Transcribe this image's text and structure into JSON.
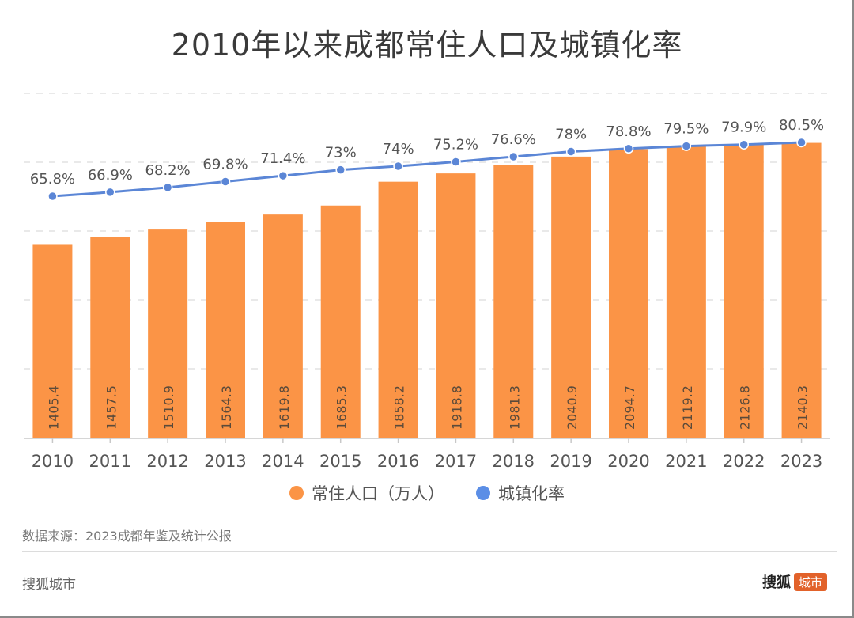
{
  "header": {
    "title": "2010年以来成都常住人口及城镇化率"
  },
  "colors": {
    "bar": "#fb9446",
    "line": "#5b86d6",
    "text": "#555555",
    "grid": "#e2e2e2",
    "logo_tag": "#e2622a"
  },
  "legend": [
    {
      "label": "常住人口（万人）",
      "color": "#fb9446"
    },
    {
      "label": "城镇化率",
      "color": "#5b8ee6"
    }
  ],
  "footer": {
    "source": "数据来源：2023成都年鉴及统计公报",
    "left_brand": "搜狐城市",
    "logo_main": "搜狐",
    "logo_tag": "城市"
  },
  "chart_data": {
    "type": "bar",
    "title": "2010年以来成都常住人口及城镇化率",
    "categories": [
      "2010",
      "2011",
      "2012",
      "2013",
      "2014",
      "2015",
      "2016",
      "2017",
      "2018",
      "2019",
      "2020",
      "2021",
      "2022",
      "2023"
    ],
    "series": [
      {
        "name": "常住人口（万人）",
        "type": "bar",
        "axis": "left",
        "values": [
          1405.4,
          1457.5,
          1510.9,
          1564.3,
          1619.8,
          1685.3,
          1858.2,
          1918.8,
          1981.3,
          2040.9,
          2094.7,
          2119.2,
          2126.8,
          2140.3
        ],
        "labels": [
          "1405.4",
          "1457.5",
          "1510.9",
          "1564.3",
          "1619.8",
          "1685.3",
          "1858.2",
          "1918.8",
          "1981.3",
          "2040.9",
          "2094.7",
          "2119.2",
          "2126.8",
          "2140.3"
        ]
      },
      {
        "name": "城镇化率",
        "type": "line",
        "axis": "right",
        "values": [
          65.8,
          66.9,
          68.2,
          69.8,
          71.4,
          73,
          74,
          75.2,
          76.6,
          78,
          78.8,
          79.5,
          79.9,
          80.5
        ],
        "labels": [
          "65.8%",
          "66.9%",
          "68.2%",
          "69.8%",
          "71.4%",
          "73%",
          "74%",
          "75.2%",
          "76.6%",
          "78%",
          "78.8%",
          "79.5%",
          "79.9%",
          "80.5%"
        ]
      }
    ],
    "left_ylim": [
      0,
      2500
    ],
    "left_gridlines": [
      0,
      500,
      1000,
      1500,
      2000,
      2500
    ],
    "axis_labels_shown": false,
    "grid": true,
    "legend_position": "bottom"
  }
}
